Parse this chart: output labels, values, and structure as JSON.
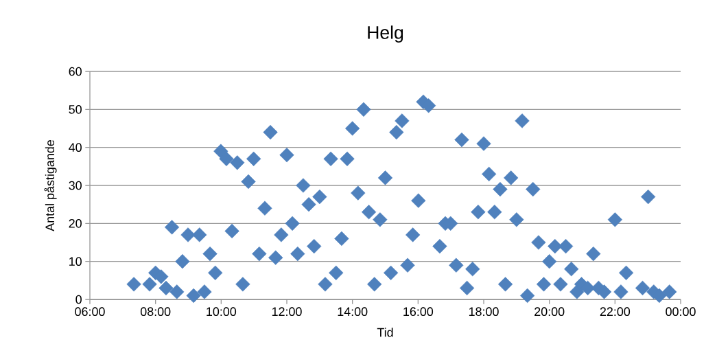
{
  "chart_data": {
    "type": "scatter",
    "title": "Helg",
    "xlabel": "Tid",
    "ylabel": "Antal påstigande",
    "x": [
      7.34,
      7.82,
      8.0,
      8.17,
      8.32,
      8.5,
      8.65,
      8.82,
      8.99,
      9.16,
      9.34,
      9.49,
      9.66,
      9.82,
      9.99,
      10.16,
      10.33,
      10.49,
      10.66,
      10.83,
      10.99,
      11.16,
      11.33,
      11.5,
      11.66,
      11.83,
      12.0,
      12.17,
      12.33,
      12.5,
      12.67,
      12.83,
      13.0,
      13.17,
      13.34,
      13.5,
      13.67,
      13.84,
      14.0,
      14.17,
      14.34,
      14.5,
      14.67,
      14.84,
      15.0,
      15.17,
      15.34,
      15.51,
      15.68,
      15.84,
      16.01,
      16.16,
      16.32,
      16.66,
      16.83,
      16.99,
      17.16,
      17.33,
      17.49,
      17.66,
      17.83,
      18.0,
      18.16,
      18.33,
      18.5,
      18.66,
      18.83,
      19.0,
      19.17,
      19.33,
      19.5,
      19.67,
      19.83,
      20.0,
      20.17,
      20.34,
      20.5,
      20.67,
      20.84,
      20.98,
      21.17,
      21.34,
      21.5,
      21.67,
      22.0,
      22.18,
      22.34,
      22.84,
      23.01,
      23.18,
      23.35,
      23.66
    ],
    "values": [
      4,
      4,
      7,
      6,
      3,
      19,
      2,
      10,
      17,
      1,
      17,
      2,
      12,
      7,
      39,
      37,
      18,
      36,
      4,
      31,
      37,
      12,
      24,
      44,
      11,
      17,
      38,
      20,
      12,
      30,
      25,
      14,
      27,
      4,
      37,
      7,
      16,
      37,
      45,
      28,
      50,
      23,
      4,
      21,
      32,
      7,
      44,
      47,
      9,
      17,
      26,
      52,
      51,
      14,
      20,
      20,
      9,
      42,
      3,
      8,
      23,
      41,
      33,
      23,
      29,
      4,
      32,
      21,
      47,
      1,
      29,
      15,
      4,
      10,
      14,
      4,
      14,
      8,
      2,
      4,
      3,
      12,
      3,
      2,
      21,
      2,
      7,
      3,
      27,
      2,
      1,
      2
    ],
    "color": "#4f81bd",
    "marker": "diamond",
    "xlim": [
      6,
      24
    ],
    "xticks": [
      {
        "value": 6,
        "label": "06:00"
      },
      {
        "value": 8,
        "label": "08:00"
      },
      {
        "value": 10,
        "label": "10:00"
      },
      {
        "value": 12,
        "label": "12:00"
      },
      {
        "value": 14,
        "label": "14:00"
      },
      {
        "value": 16,
        "label": "16:00"
      },
      {
        "value": 18,
        "label": "18:00"
      },
      {
        "value": 20,
        "label": "20:00"
      },
      {
        "value": 22,
        "label": "22:00"
      },
      {
        "value": 24,
        "label": "00:00"
      }
    ],
    "ylim": [
      0,
      60
    ],
    "yticks": [
      0,
      10,
      20,
      30,
      40,
      50,
      60
    ],
    "grid": "y"
  }
}
